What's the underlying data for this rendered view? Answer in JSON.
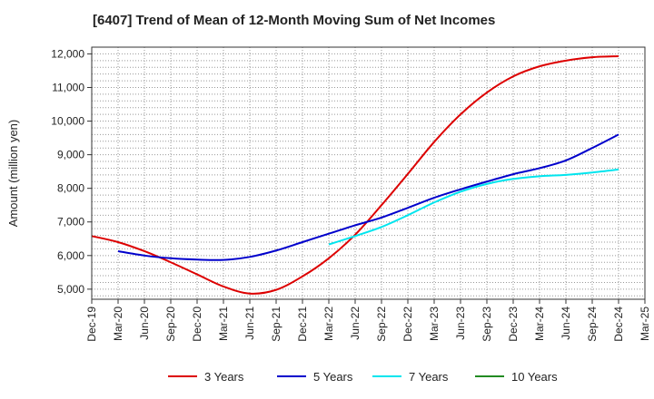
{
  "chart_data": {
    "type": "line",
    "title": "[6407]  Trend of Mean of 12-Month Moving Sum of Net Incomes",
    "xlabel": "",
    "ylabel": "Amount (million yen)",
    "ylim": [
      4700,
      12200
    ],
    "yticks": [
      5000,
      6000,
      7000,
      8000,
      9000,
      10000,
      11000,
      12000
    ],
    "ytick_labels": [
      "5,000",
      "6,000",
      "7,000",
      "8,000",
      "9,000",
      "10,000",
      "11,000",
      "12,000"
    ],
    "x_ticks": [
      "Dec-19",
      "Mar-20",
      "Jun-20",
      "Sep-20",
      "Dec-20",
      "Mar-21",
      "Jun-21",
      "Sep-21",
      "Dec-21",
      "Mar-22",
      "Jun-22",
      "Sep-22",
      "Dec-22",
      "Mar-23",
      "Jun-23",
      "Sep-23",
      "Dec-23",
      "Mar-24",
      "Jun-24",
      "Sep-24",
      "Dec-24",
      "Mar-25"
    ],
    "grid": true,
    "legend_position": "bottom",
    "series": [
      {
        "name": "3 Years",
        "color": "#dd0000",
        "points": [
          [
            "Dec-19",
            6580
          ],
          [
            "Mar-20",
            6400
          ],
          [
            "Jun-20",
            6130
          ],
          [
            "Sep-20",
            5800
          ],
          [
            "Dec-20",
            5440
          ],
          [
            "Mar-21",
            5080
          ],
          [
            "Jun-21",
            4870
          ],
          [
            "Sep-21",
            4980
          ],
          [
            "Dec-21",
            5380
          ],
          [
            "Mar-22",
            5920
          ],
          [
            "Jun-22",
            6620
          ],
          [
            "Sep-22",
            7500
          ],
          [
            "Dec-22",
            8430
          ],
          [
            "Mar-23",
            9380
          ],
          [
            "Jun-23",
            10200
          ],
          [
            "Sep-23",
            10850
          ],
          [
            "Dec-23",
            11330
          ],
          [
            "Mar-24",
            11630
          ],
          [
            "Jun-24",
            11800
          ],
          [
            "Sep-24",
            11900
          ],
          [
            "Dec-24",
            11930
          ]
        ]
      },
      {
        "name": "5 Years",
        "color": "#0000cc",
        "points": [
          [
            "Mar-20",
            6130
          ],
          [
            "Jun-20",
            6000
          ],
          [
            "Sep-20",
            5920
          ],
          [
            "Dec-20",
            5880
          ],
          [
            "Mar-21",
            5870
          ],
          [
            "Jun-21",
            5960
          ],
          [
            "Sep-21",
            6150
          ],
          [
            "Dec-21",
            6400
          ],
          [
            "Mar-22",
            6650
          ],
          [
            "Jun-22",
            6900
          ],
          [
            "Sep-22",
            7130
          ],
          [
            "Dec-22",
            7420
          ],
          [
            "Mar-23",
            7720
          ],
          [
            "Jun-23",
            7970
          ],
          [
            "Sep-23",
            8200
          ],
          [
            "Dec-23",
            8420
          ],
          [
            "Mar-24",
            8600
          ],
          [
            "Jun-24",
            8830
          ],
          [
            "Sep-24",
            9200
          ],
          [
            "Dec-24",
            9600
          ]
        ]
      },
      {
        "name": "7 Years",
        "color": "#00e5ee",
        "points": [
          [
            "Mar-22",
            6330
          ],
          [
            "Jun-22",
            6580
          ],
          [
            "Sep-22",
            6850
          ],
          [
            "Dec-22",
            7200
          ],
          [
            "Mar-23",
            7580
          ],
          [
            "Jun-23",
            7900
          ],
          [
            "Sep-23",
            8130
          ],
          [
            "Dec-23",
            8280
          ],
          [
            "Mar-24",
            8360
          ],
          [
            "Jun-24",
            8400
          ],
          [
            "Sep-24",
            8470
          ],
          [
            "Dec-24",
            8560
          ]
        ]
      },
      {
        "name": "10 Years",
        "color": "#228b22",
        "points": []
      }
    ]
  }
}
